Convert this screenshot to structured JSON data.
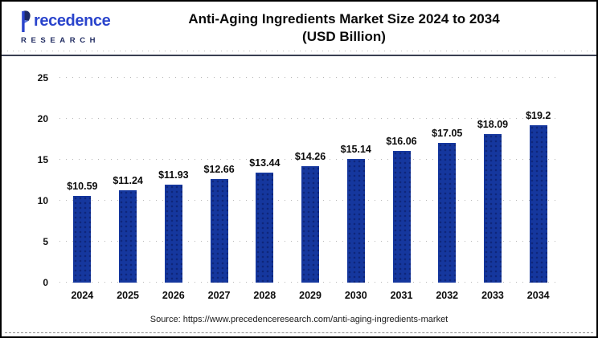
{
  "header": {
    "logo": {
      "brand": "recedence",
      "brand_full": "Precedence",
      "sub": "RESEARCH",
      "brand_color": "#2a44cc",
      "sub_color": "#232e63"
    },
    "title_line1": "Anti-Aging Ingredients Market Size 2024 to 2034",
    "title_line2": "(USD Billion)"
  },
  "chart_data": {
    "type": "bar",
    "title": "Anti-Aging Ingredients Market Size 2024 to 2034 (USD Billion)",
    "categories": [
      "2024",
      "2025",
      "2026",
      "2027",
      "2028",
      "2029",
      "2030",
      "2031",
      "2032",
      "2033",
      "2034"
    ],
    "values": [
      10.59,
      11.24,
      11.93,
      12.66,
      13.44,
      14.26,
      15.14,
      16.06,
      17.05,
      18.09,
      19.2
    ],
    "bar_labels": [
      "$10.59",
      "$11.24",
      "$11.93",
      "$12.66",
      "$13.44",
      "$14.26",
      "$15.14",
      "$16.06",
      "$17.05",
      "$18.09",
      "$19.2"
    ],
    "xlabel": "",
    "ylabel": "",
    "ylim": [
      0,
      25
    ],
    "y_ticks": [
      0,
      5,
      10,
      15,
      20,
      25
    ],
    "grid": "horizontal-dotted",
    "legend": "none",
    "bar_color": "#15379E"
  },
  "footer": {
    "source": "Source: https://www.precedenceresearch.com/anti-aging-ingredients-market"
  }
}
